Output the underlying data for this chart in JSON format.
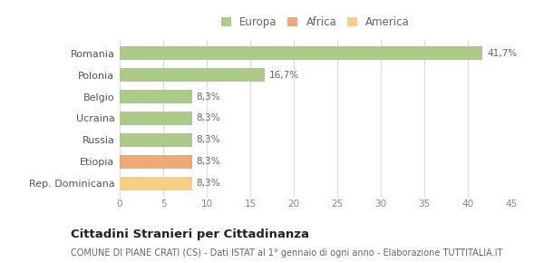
{
  "categories": [
    "Rep. Dominicana",
    "Etiopia",
    "Russia",
    "Ucraina",
    "Belgio",
    "Polonia",
    "Romania"
  ],
  "values": [
    8.3,
    8.3,
    8.3,
    8.3,
    8.3,
    16.7,
    41.7
  ],
  "labels": [
    "8,3%",
    "8,3%",
    "8,3%",
    "8,3%",
    "8,3%",
    "16,7%",
    "41,7%"
  ],
  "colors": [
    "#F5D080",
    "#EDAA78",
    "#AECA88",
    "#AECA88",
    "#AECA88",
    "#AECA88",
    "#AECA88"
  ],
  "legend": [
    {
      "label": "Europa",
      "color": "#AECA88"
    },
    {
      "label": "Africa",
      "color": "#EDAA78"
    },
    {
      "label": "America",
      "color": "#F5D080"
    }
  ],
  "xlim": [
    0,
    45
  ],
  "xticks": [
    0,
    5,
    10,
    15,
    20,
    25,
    30,
    35,
    40,
    45
  ],
  "title": "Cittadini Stranieri per Cittadinanza",
  "subtitle": "COMUNE DI PIANE CRATI (CS) - Dati ISTAT al 1° gennaio di ogni anno - Elaborazione TUTTITALIA.IT",
  "title_fontsize": 9.5,
  "subtitle_fontsize": 7,
  "bg_color": "#ffffff",
  "grid_color": "#dddddd",
  "bar_height": 0.6
}
